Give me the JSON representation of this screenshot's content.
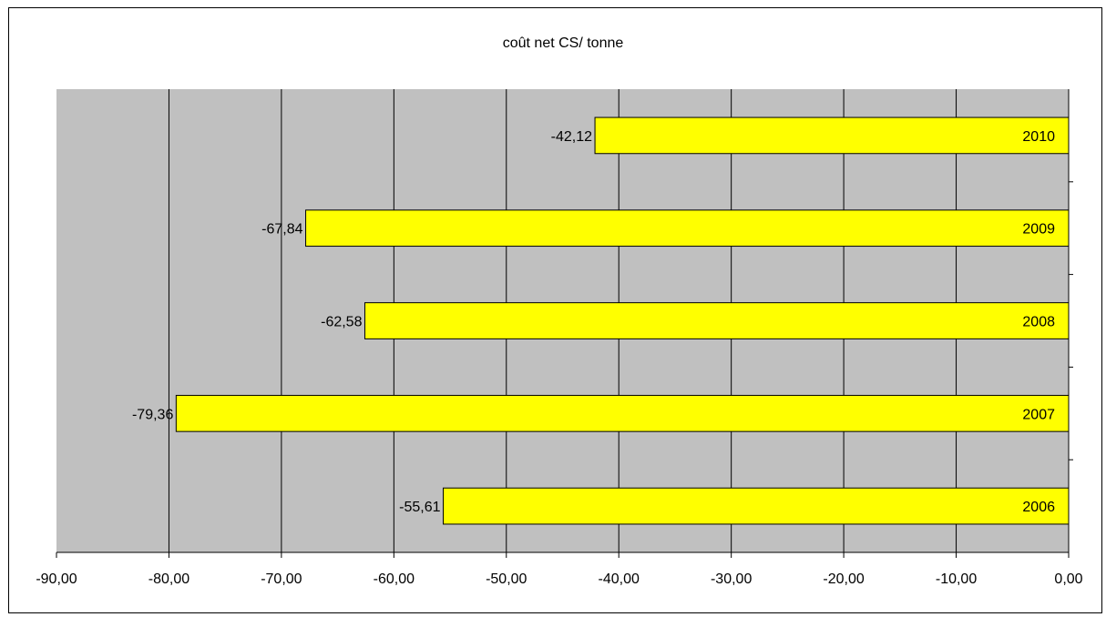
{
  "chart_data": {
    "type": "bar",
    "orientation": "horizontal",
    "title": "coût net CS/ tonne",
    "categories": [
      "2010",
      "2009",
      "2008",
      "2007",
      "2006"
    ],
    "values": [
      -42.12,
      -67.84,
      -62.58,
      -79.36,
      -55.61
    ],
    "value_labels": [
      "-42,12",
      "-67,84",
      "-62,58",
      "-79,36",
      "-55,61"
    ],
    "xlim": [
      -90,
      0
    ],
    "x_ticks": [
      -90,
      -80,
      -70,
      -60,
      -50,
      -40,
      -30,
      -20,
      -10,
      0
    ],
    "x_tick_labels": [
      "-90,00",
      "-80,00",
      "-70,00",
      "-60,00",
      "-50,00",
      "-40,00",
      "-30,00",
      "-20,00",
      "-10,00",
      "0,00"
    ],
    "grid": true,
    "legend": "none",
    "colors": {
      "plot_background": "#c0c0c0",
      "bar_fill": "#ffff00",
      "bar_stroke": "#000000",
      "gridline": "#000000"
    }
  }
}
